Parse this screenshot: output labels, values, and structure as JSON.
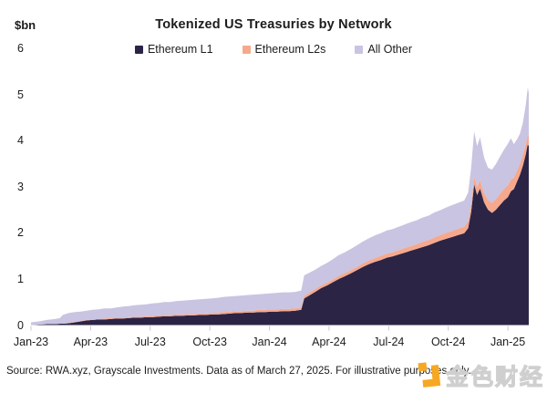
{
  "header": {
    "units_label": "$bn",
    "title": "Tokenized US Treasuries by Network"
  },
  "footer": {
    "source": "Source: RWA.xyz, Grayscale Investments. Data as of March 27, 2025. For illustrative purposes only."
  },
  "watermark": {
    "text": "金色财经",
    "logo_color": "#f7a823",
    "outline_color": "#cfcfcf"
  },
  "chart_data": {
    "type": "area",
    "stacked": true,
    "title": "Tokenized US Treasuries by Network",
    "ylabel": "$bn",
    "xlabel": "",
    "grid": false,
    "legend_position": "top",
    "ylim": [
      0,
      6
    ],
    "y_ticks": [
      0,
      1,
      2,
      3,
      4,
      5,
      6
    ],
    "x_domain": [
      0,
      25.05
    ],
    "x_unit": "months since Jan-2023",
    "x_tick_months": [
      0,
      3,
      6,
      9,
      12,
      15,
      18,
      21,
      24
    ],
    "x_tick_labels": [
      "Jan-23",
      "Apr-23",
      "Jul-23",
      "Oct-23",
      "Jan-24",
      "Apr-24",
      "Jul-24",
      "Oct-24",
      "Jan-25"
    ],
    "x": [
      0,
      0.4,
      0.8,
      1.2,
      1.45,
      1.6,
      1.9,
      2.2,
      2.5,
      2.8,
      3.1,
      3.4,
      3.7,
      4.0,
      4.3,
      4.6,
      4.9,
      5.2,
      5.5,
      5.8,
      6.1,
      6.4,
      6.7,
      7.0,
      7.3,
      7.6,
      7.9,
      8.2,
      8.5,
      8.8,
      9.1,
      9.4,
      9.7,
      10.0,
      10.3,
      10.6,
      10.9,
      11.2,
      11.5,
      11.8,
      12.1,
      12.4,
      12.7,
      13.0,
      13.3,
      13.6,
      13.75,
      14.0,
      14.3,
      14.6,
      14.9,
      15.2,
      15.5,
      15.8,
      16.1,
      16.4,
      16.7,
      17.0,
      17.3,
      17.6,
      17.9,
      18.2,
      18.5,
      18.8,
      19.1,
      19.4,
      19.7,
      20.0,
      20.3,
      20.6,
      20.9,
      21.2,
      21.5,
      21.8,
      22.0,
      22.15,
      22.3,
      22.45,
      22.6,
      22.8,
      23.0,
      23.2,
      23.4,
      23.6,
      23.8,
      24.0,
      24.15,
      24.3,
      24.45,
      24.6,
      24.75,
      24.9,
      25.0,
      25.05
    ],
    "series": [
      {
        "name": "Ethereum L1",
        "color": "#2c2445",
        "values": [
          0.0,
          0.01,
          0.02,
          0.02,
          0.03,
          0.03,
          0.04,
          0.06,
          0.08,
          0.1,
          0.11,
          0.12,
          0.12,
          0.13,
          0.14,
          0.14,
          0.15,
          0.16,
          0.16,
          0.17,
          0.17,
          0.18,
          0.19,
          0.19,
          0.2,
          0.2,
          0.21,
          0.21,
          0.22,
          0.22,
          0.23,
          0.23,
          0.24,
          0.25,
          0.26,
          0.26,
          0.27,
          0.27,
          0.28,
          0.28,
          0.29,
          0.29,
          0.3,
          0.3,
          0.31,
          0.33,
          0.58,
          0.64,
          0.72,
          0.8,
          0.86,
          0.93,
          1.0,
          1.06,
          1.12,
          1.19,
          1.26,
          1.32,
          1.37,
          1.41,
          1.46,
          1.49,
          1.53,
          1.57,
          1.61,
          1.65,
          1.69,
          1.73,
          1.78,
          1.83,
          1.87,
          1.91,
          1.95,
          1.99,
          2.1,
          2.45,
          3.05,
          2.82,
          2.96,
          2.66,
          2.5,
          2.43,
          2.5,
          2.6,
          2.7,
          2.77,
          2.9,
          2.95,
          3.1,
          3.25,
          3.45,
          3.7,
          3.92,
          3.88
        ]
      },
      {
        "name": "Ethereum L2s",
        "color": "#f6a88d",
        "values": [
          0.0,
          0.0,
          0.0,
          0.0,
          0.0,
          0.0,
          0.01,
          0.01,
          0.01,
          0.01,
          0.01,
          0.01,
          0.02,
          0.02,
          0.02,
          0.02,
          0.02,
          0.02,
          0.02,
          0.02,
          0.03,
          0.03,
          0.03,
          0.03,
          0.03,
          0.03,
          0.03,
          0.03,
          0.03,
          0.03,
          0.03,
          0.04,
          0.04,
          0.04,
          0.04,
          0.04,
          0.04,
          0.04,
          0.05,
          0.05,
          0.05,
          0.05,
          0.05,
          0.05,
          0.05,
          0.05,
          0.05,
          0.06,
          0.06,
          0.06,
          0.06,
          0.06,
          0.07,
          0.07,
          0.07,
          0.07,
          0.08,
          0.08,
          0.08,
          0.09,
          0.09,
          0.09,
          0.09,
          0.1,
          0.1,
          0.1,
          0.11,
          0.11,
          0.12,
          0.12,
          0.13,
          0.13,
          0.14,
          0.14,
          0.15,
          0.16,
          0.17,
          0.18,
          0.18,
          0.2,
          0.21,
          0.22,
          0.23,
          0.24,
          0.25,
          0.26,
          0.25,
          0.25,
          0.24,
          0.24,
          0.23,
          0.22,
          0.2,
          0.2
        ]
      },
      {
        "name": "All Other",
        "color": "#c8c4e1",
        "values": [
          0.06,
          0.07,
          0.09,
          0.11,
          0.12,
          0.19,
          0.21,
          0.21,
          0.2,
          0.2,
          0.21,
          0.21,
          0.22,
          0.21,
          0.22,
          0.24,
          0.24,
          0.25,
          0.26,
          0.26,
          0.27,
          0.27,
          0.28,
          0.28,
          0.29,
          0.3,
          0.3,
          0.31,
          0.31,
          0.32,
          0.32,
          0.32,
          0.33,
          0.33,
          0.33,
          0.34,
          0.34,
          0.35,
          0.34,
          0.35,
          0.35,
          0.36,
          0.36,
          0.36,
          0.36,
          0.37,
          0.45,
          0.43,
          0.42,
          0.42,
          0.43,
          0.44,
          0.45,
          0.45,
          0.46,
          0.47,
          0.47,
          0.48,
          0.49,
          0.49,
          0.5,
          0.5,
          0.51,
          0.51,
          0.52,
          0.52,
          0.53,
          0.53,
          0.54,
          0.54,
          0.55,
          0.56,
          0.56,
          0.57,
          0.62,
          0.8,
          0.98,
          0.88,
          0.93,
          0.77,
          0.7,
          0.72,
          0.76,
          0.81,
          0.85,
          0.9,
          0.9,
          0.72,
          0.68,
          0.65,
          0.7,
          0.85,
          1.03,
          0.95
        ]
      }
    ]
  }
}
